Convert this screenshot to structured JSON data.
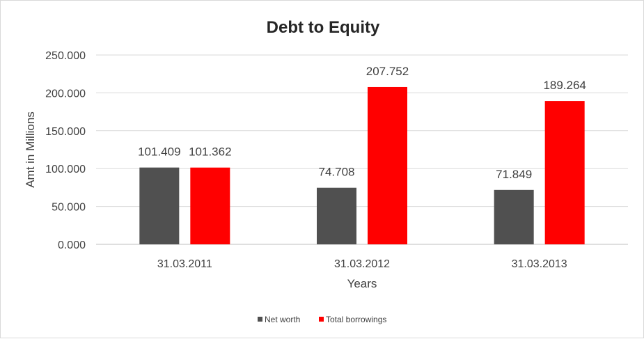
{
  "chart_data": {
    "type": "bar",
    "title": "Debt to Equity",
    "xlabel": "Years",
    "ylabel": "Amt in Millions",
    "categories": [
      "31.03.2011",
      "31.03.2012",
      "31.03.2013"
    ],
    "series": [
      {
        "name": "Net worth",
        "values": [
          101.409,
          74.708,
          71.849
        ],
        "labels": [
          "101.409",
          "74.708",
          "71.849"
        ],
        "color": "#505050"
      },
      {
        "name": "Total borrowings",
        "values": [
          101.362,
          207.752,
          189.264
        ],
        "labels": [
          "101.362",
          "207.752",
          "189.264"
        ],
        "color": "#ff0000"
      }
    ],
    "ylim": [
      0,
      250
    ],
    "yticks": [
      0,
      50,
      100,
      150,
      200,
      250
    ],
    "ytick_labels": [
      "0.000",
      "50.000",
      "100.000",
      "150.000",
      "200.000",
      "250.000"
    ],
    "grid": true,
    "legend_position": "bottom"
  }
}
